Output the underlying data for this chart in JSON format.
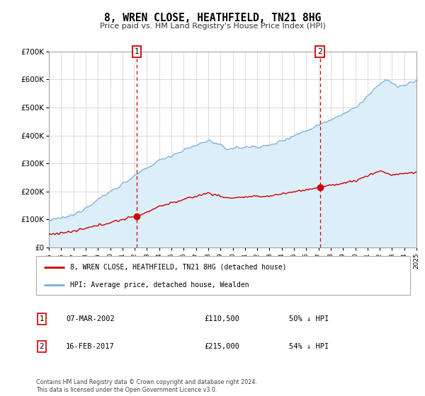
{
  "title": "8, WREN CLOSE, HEATHFIELD, TN21 8HG",
  "subtitle": "Price paid vs. HM Land Registry's House Price Index (HPI)",
  "legend_entry1": "8, WREN CLOSE, HEATHFIELD, TN21 8HG (detached house)",
  "legend_entry2": "HPI: Average price, detached house, Wealden",
  "table_row1": {
    "num": "1",
    "date": "07-MAR-2002",
    "price": "£110,500",
    "pct": "50% ↓ HPI"
  },
  "table_row2": {
    "num": "2",
    "date": "16-FEB-2017",
    "price": "£215,000",
    "pct": "54% ↓ HPI"
  },
  "footnote": "Contains HM Land Registry data © Crown copyright and database right 2024.\nThis data is licensed under the Open Government Licence v3.0.",
  "red_line_color": "#cc0000",
  "blue_line_color": "#7aadda",
  "blue_fill_color": "#dceef8",
  "vline_color": "#cc0000",
  "marker1_x": 2002.18,
  "marker1_y": 110500,
  "marker2_x": 2017.12,
  "marker2_y": 215000,
  "ylim": [
    0,
    700000
  ],
  "xlim": [
    1995,
    2025
  ],
  "yticks": [
    0,
    100000,
    200000,
    300000,
    400000,
    500000,
    600000,
    700000
  ],
  "ytick_labels": [
    "£0",
    "£100K",
    "£200K",
    "£300K",
    "£400K",
    "£500K",
    "£600K",
    "£700K"
  ]
}
